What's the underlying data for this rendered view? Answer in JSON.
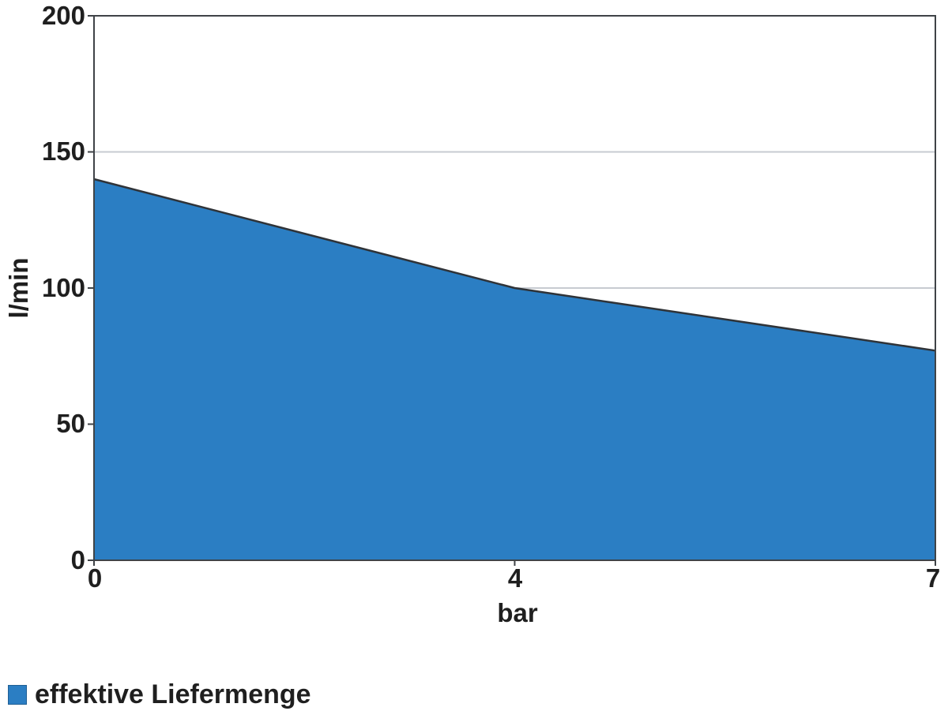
{
  "chart_data": {
    "type": "area",
    "categories": [
      "0",
      "4",
      "7"
    ],
    "series": [
      {
        "name": "effektive Liefermenge",
        "values": [
          140,
          100,
          77
        ]
      }
    ],
    "title": "",
    "xlabel": "bar",
    "ylabel": "l/min",
    "ylim": [
      0,
      200
    ],
    "yticks": [
      "200",
      "150",
      "100",
      "50",
      "0"
    ],
    "xticks": [
      "0",
      "4",
      "7"
    ],
    "ygrid": [
      150,
      100,
      50
    ],
    "grid": "horizontal",
    "legend_position": "bottom-left",
    "colors": {
      "area_fill": "#2B7EC3",
      "area_line": "#2F3338",
      "frame": "#3F4347",
      "gridline": "#C7CBD1",
      "text": "#1F1F1F"
    }
  },
  "legend": {
    "items": [
      {
        "label": "effektive Liefermenge",
        "swatch_color": "#2B7EC3"
      }
    ]
  }
}
